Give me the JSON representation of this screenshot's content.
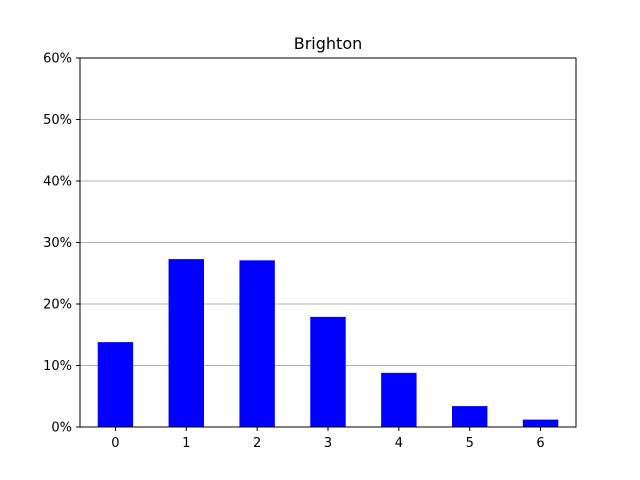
{
  "chart_data": {
    "type": "bar",
    "title": "Brighton",
    "xlabel": "",
    "ylabel": "",
    "categories": [
      "0",
      "1",
      "2",
      "3",
      "4",
      "5",
      "6"
    ],
    "values": [
      13.8,
      27.3,
      27.1,
      17.9,
      8.8,
      3.4,
      1.2
    ],
    "ylim": [
      0,
      60
    ],
    "yticks": [
      0,
      10,
      20,
      30,
      40,
      50,
      60
    ],
    "ytick_labels": [
      "0%",
      "10%",
      "20%",
      "30%",
      "40%",
      "50%",
      "60%"
    ],
    "grid": "horizontal",
    "bar_color": "#0000ff",
    "grid_color": "#b0b0b0",
    "legend": "none"
  }
}
